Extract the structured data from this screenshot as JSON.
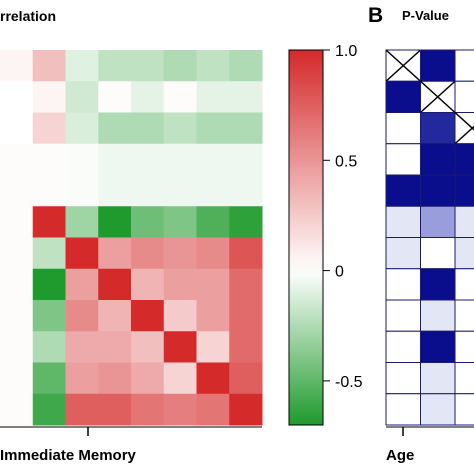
{
  "panel_a": {
    "title": "rrelation",
    "x_label": "Immediate Memory"
  },
  "panel_b": {
    "letter": "B",
    "title": "P-Value",
    "x_label": "Age"
  },
  "colorbar": {
    "ticks": [
      {
        "value": 1.0,
        "label": "1.0"
      },
      {
        "value": 0.5,
        "label": "0.5"
      },
      {
        "value": 0,
        "label": "0"
      },
      {
        "value": -0.5,
        "label": "-0.5"
      }
    ],
    "range": [
      -0.7,
      1.0
    ],
    "colors": {
      "negative": "#1f9a2c",
      "zero": "#ffffff",
      "positive": "#d42a2a"
    }
  },
  "chart_data": [
    {
      "type": "heatmap",
      "title": "rrelation",
      "xlabel": "Immediate Memory",
      "ylabel": "",
      "vmin": -0.7,
      "vmax": 1.0,
      "values": [
        [
          0.05,
          0.3,
          -0.1,
          -0.2,
          -0.2,
          -0.25,
          -0.2,
          -0.25
        ],
        [
          0.0,
          0.05,
          -0.15,
          0.02,
          -0.08,
          0.02,
          -0.08,
          -0.08
        ],
        [
          0.0,
          0.2,
          -0.12,
          -0.25,
          -0.25,
          -0.2,
          -0.25,
          -0.25
        ],
        [
          0.02,
          0.02,
          -0.02,
          -0.05,
          -0.05,
          -0.05,
          -0.05,
          -0.05
        ],
        [
          0.02,
          0.02,
          -0.02,
          -0.05,
          -0.05,
          -0.05,
          -0.05,
          -0.05
        ],
        [
          0.02,
          1.0,
          -0.3,
          -0.7,
          -0.45,
          -0.4,
          -0.55,
          -0.65
        ],
        [
          0.02,
          -0.2,
          1.0,
          0.45,
          0.55,
          0.5,
          0.55,
          0.8
        ],
        [
          0.02,
          -0.7,
          0.45,
          1.0,
          0.35,
          0.45,
          0.45,
          0.7
        ],
        [
          0.02,
          -0.4,
          0.55,
          0.35,
          1.0,
          0.25,
          0.45,
          0.7
        ],
        [
          0.02,
          -0.25,
          0.4,
          0.4,
          0.3,
          1.0,
          0.2,
          0.7
        ],
        [
          0.02,
          -0.5,
          0.45,
          0.5,
          0.4,
          0.2,
          1.0,
          0.75
        ],
        [
          0.02,
          -0.6,
          0.75,
          0.75,
          0.65,
          0.6,
          0.65,
          1.0
        ]
      ]
    },
    {
      "type": "heatmap",
      "title": "P-Value",
      "xlabel": "Age",
      "ylabel": "",
      "legend": {
        "cross": "diagonal cell",
        "dark": "#0a0d8c",
        "mid": "#22289e",
        "light": "#9a9ddb",
        "faint": "#e3e6f5",
        "none": "#ffffff"
      },
      "cells": [
        [
          "cross",
          "dark",
          "none"
        ],
        [
          "dark",
          "cross",
          "none"
        ],
        [
          "none",
          "mid",
          "cross"
        ],
        [
          "none",
          "dark",
          "dark"
        ],
        [
          "dark",
          "dark",
          "dark"
        ],
        [
          "faint",
          "light",
          "faint"
        ],
        [
          "faint",
          "none",
          "faint"
        ],
        [
          "none",
          "dark",
          "none"
        ],
        [
          "none",
          "faint",
          "none"
        ],
        [
          "none",
          "dark",
          "none"
        ],
        [
          "none",
          "faint",
          "none"
        ],
        [
          "none",
          "faint",
          "none"
        ]
      ]
    }
  ]
}
